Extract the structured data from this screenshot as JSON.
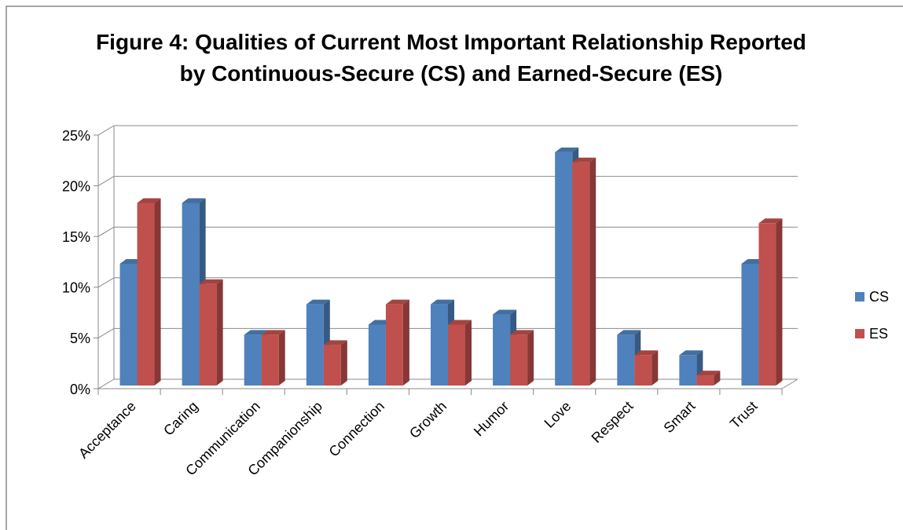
{
  "chart_data": {
    "type": "bar3d",
    "title": "Figure 4: Qualities of Current Most Important Relationship Reported by Continuous-Secure (CS) and Earned-Secure (ES)",
    "categories": [
      "Acceptance",
      "Caring",
      "Communication",
      "Companionship",
      "Connection",
      "Growth",
      "Humor",
      "Love",
      "Respect",
      "Smart",
      "Trust"
    ],
    "series": [
      {
        "name": "CS",
        "color": "#4f81bd",
        "values": [
          12,
          18,
          5,
          8,
          6,
          8,
          7,
          23,
          5,
          3,
          12
        ]
      },
      {
        "name": "ES",
        "color": "#c0504d",
        "values": [
          18,
          10,
          5,
          4,
          8,
          6,
          5,
          22,
          3,
          1,
          16
        ]
      }
    ],
    "ylim": [
      0,
      25
    ],
    "yticks": [
      {
        "value": 0,
        "label": "0%"
      },
      {
        "value": 5,
        "label": "5%"
      },
      {
        "value": 10,
        "label": "10%"
      },
      {
        "value": 15,
        "label": "15%"
      },
      {
        "value": 20,
        "label": "20%"
      },
      {
        "value": 25,
        "label": "25%"
      }
    ],
    "grid": true,
    "legend": "right"
  }
}
